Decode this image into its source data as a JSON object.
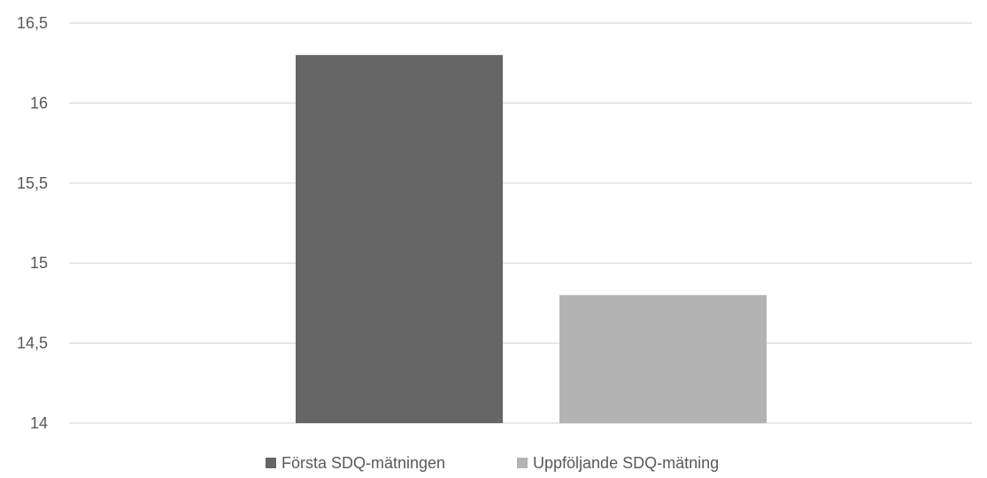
{
  "chart_data": {
    "type": "bar",
    "title": "",
    "xlabel": "",
    "ylabel": "",
    "ylim": [
      14,
      16.5
    ],
    "yticks": [
      14,
      14.5,
      15,
      15.5,
      16,
      16.5
    ],
    "ytick_labels": [
      "14",
      "14,5",
      "15",
      "15,5",
      "16",
      "16,5"
    ],
    "grid": true,
    "legend_position": "bottom",
    "series": [
      {
        "name": "Första SDQ-mätningen",
        "value": 16.3,
        "color": "#666666"
      },
      {
        "name": "Uppföljande SDQ-mätning",
        "value": 14.8,
        "color": "#b3b3b3"
      }
    ]
  }
}
